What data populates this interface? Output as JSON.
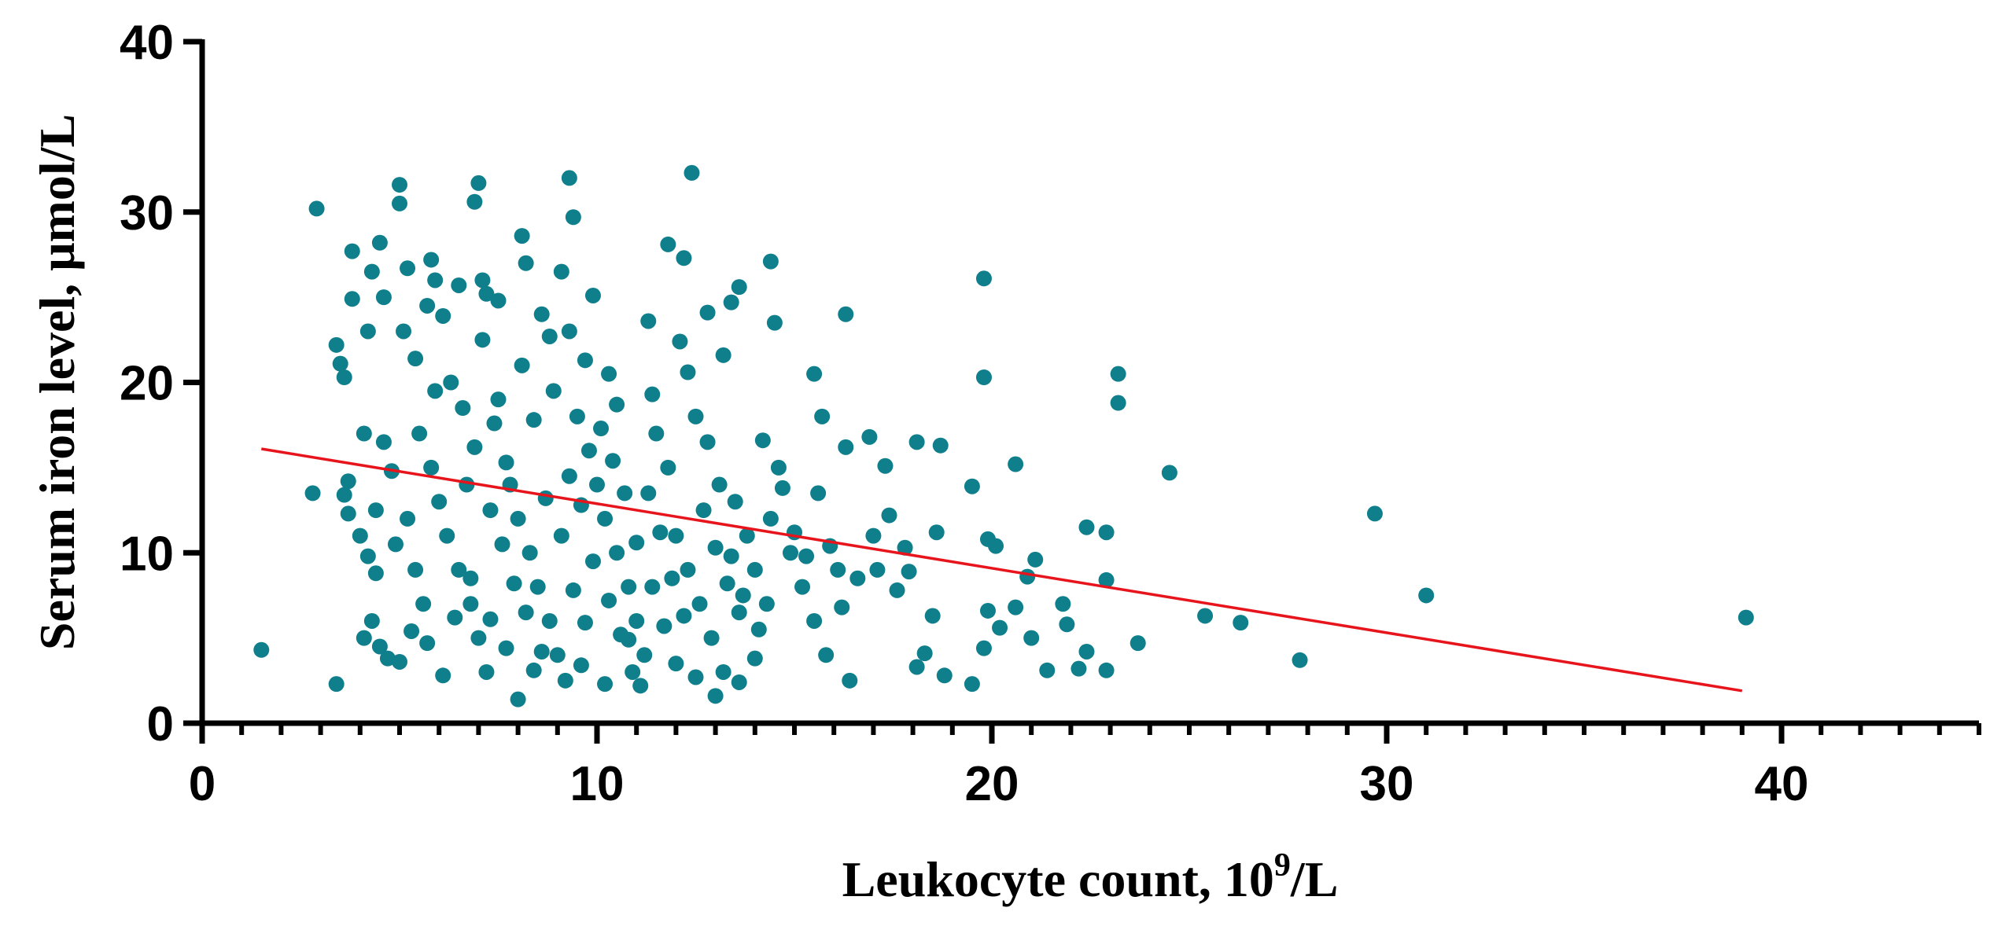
{
  "chart_data": {
    "type": "scatter",
    "xlabel": [
      "Leukocyte count, 10",
      "9",
      "/L"
    ],
    "ylabel": "Serum iron level, μmol/L",
    "color": "#0f7f8c",
    "x": [
      1.5,
      2.9,
      2.8,
      3.4,
      3.5,
      3.6,
      3.4,
      3.7,
      3.6,
      3.7,
      3.8,
      3.8,
      4.1,
      4,
      4.1,
      4.3,
      4.2,
      4.5,
      4.6,
      4.3,
      4.5,
      4.7,
      5,
      5,
      5.2,
      5.1,
      5.3,
      5,
      5.8,
      5.9,
      5.7,
      6.9,
      7,
      7.1,
      7.2,
      8.1,
      8.2,
      9.1,
      9.3,
      9.4,
      9.3,
      9.9,
      10.3,
      11.3,
      11.8,
      12.2,
      12.4,
      12.8,
      13.4,
      13.6,
      14.4,
      14.5,
      16.3,
      15.5,
      15.7,
      16.3,
      16.9,
      17.3,
      17,
      17.4,
      17.8,
      18.1,
      18.7,
      18.5,
      18.6,
      18.8,
      19.5,
      19.5,
      19.8,
      19.8,
      19.9,
      20.1,
      19.9,
      19.8,
      20.2,
      20.6,
      20.6,
      20.9,
      21.1,
      21,
      21.4,
      21.9,
      21.8,
      22.4,
      22.4,
      22.2,
      22.9,
      22.9,
      22.9,
      23.2,
      23.2,
      23.7,
      24.5,
      25.4,
      26.3,
      27.8,
      29.7,
      31,
      39.1,
      16.4,
      5.5,
      5.8,
      6,
      6.2,
      6.5,
      6.8,
      7,
      7.2,
      7.5,
      7.8,
      8,
      8.3,
      8.5,
      8.8,
      9,
      9.2,
      9.5,
      9.8,
      10,
      10.2,
      10.5,
      10.8,
      11,
      11.2,
      11.5,
      11.8,
      12,
      12.3,
      12.6,
      12.9,
      13.2,
      13.5,
      13.8,
      14,
      14.3,
      14.6,
      14.9,
      15.2,
      15.5,
      15.8,
      16.1,
      6.3,
      6.6,
      6.9,
      7.3,
      7.6,
      7.9,
      8.2,
      8.6,
      8.9,
      9.3,
      9.6,
      9.9,
      10.3,
      10.6,
      10.9,
      11.3,
      11.6,
      11.9,
      12.2,
      12.5,
      12.8,
      13.1,
      13.4,
      13.7,
      14.1,
      14.4,
      5.2,
      5.4,
      5.6,
      5.9,
      4.8,
      4.6,
      4.4,
      4.2,
      4.4,
      4.9,
      5.7,
      6.1,
      6.4,
      6.7,
      7.1,
      7.4,
      7.7,
      8.1,
      8.4,
      8.7,
      9.1,
      9.4,
      9.7,
      10.1,
      10.4,
      10.7,
      11,
      11.4,
      11.7,
      12,
      12.3,
      12.7,
      13,
      13.3,
      13.6,
      14,
      14.2,
      14.7,
      15,
      15.3,
      15.6,
      15.9,
      16.2,
      16.6,
      17.1,
      17.6,
      17.9,
      18.3,
      18.1,
      6.8,
      7.3,
      7.7,
      8,
      8.4,
      9.6,
      10.2,
      10.8,
      11.1,
      12.5,
      13,
      13.6,
      7.5,
      8.6,
      9.7,
      10.5,
      11.4,
      12.1,
      13.2,
      8.8,
      6.1,
      5.4,
      6.5
    ],
    "values": [
      4.3,
      30.2,
      13.5,
      22.2,
      21.1,
      20.3,
      2.3,
      14.2,
      13.4,
      12.3,
      27.7,
      24.9,
      17,
      11,
      5,
      26.5,
      23,
      28.2,
      25,
      6,
      4.5,
      3.8,
      31.6,
      30.5,
      26.7,
      23,
      5.4,
      3.6,
      27.2,
      26,
      24.5,
      30.6,
      31.7,
      26,
      25.2,
      28.6,
      27,
      26.5,
      32,
      29.7,
      23,
      25.1,
      20.5,
      23.6,
      28.1,
      27.3,
      32.3,
      24.1,
      24.7,
      25.6,
      27.1,
      23.5,
      24,
      20.5,
      18,
      16.2,
      16.8,
      15.1,
      11,
      12.2,
      10.3,
      16.5,
      16.3,
      6.3,
      11.2,
      2.8,
      2.3,
      13.9,
      26.1,
      20.3,
      10.8,
      10.4,
      6.6,
      4.4,
      5.6,
      15.2,
      6.8,
      8.6,
      9.6,
      5,
      3.1,
      5.8,
      7,
      11.5,
      4.2,
      3.2,
      11.2,
      8.4,
      3.1,
      20.5,
      18.8,
      4.7,
      14.7,
      6.3,
      5.9,
      3.7,
      12.3,
      7.5,
      6.2,
      2.5,
      17,
      15,
      13,
      11,
      9,
      7,
      5,
      3,
      19,
      14,
      12,
      10,
      8,
      6,
      4,
      2.5,
      18,
      16,
      14,
      12,
      10,
      8,
      6,
      4,
      17,
      15,
      11,
      9,
      7,
      5,
      3,
      13,
      11,
      9,
      7,
      15,
      10,
      8,
      6,
      4,
      9,
      20,
      18.5,
      16.2,
      12.5,
      10.5,
      8.2,
      6.5,
      4.2,
      19.5,
      14.5,
      12.8,
      9.5,
      7.2,
      5.2,
      3,
      13.5,
      11.2,
      8.5,
      6.3,
      18,
      16.5,
      14,
      9.8,
      7.5,
      5.5,
      12,
      12,
      9,
      7,
      19.5,
      14.8,
      16.5,
      12.5,
      9.8,
      8.8,
      10.5,
      4.7,
      2.8,
      6.2,
      14,
      22.5,
      17.6,
      15.3,
      21,
      17.8,
      13.2,
      11,
      7.8,
      5.9,
      17.3,
      15.4,
      13.5,
      10.6,
      8,
      5.7,
      3.5,
      20.6,
      12.5,
      10.3,
      8.2,
      6.5,
      3.8,
      16.6,
      13.8,
      11.2,
      9.8,
      13.5,
      10.4,
      6.8,
      8.5,
      9,
      7.8,
      8.9,
      4.1,
      3.3,
      8.5,
      6.1,
      4.4,
      1.4,
      3.1,
      3.4,
      2.3,
      4.9,
      2.2,
      2.7,
      1.6,
      2.4,
      24.8,
      24,
      21.3,
      18.7,
      19.3,
      22.4,
      21.6,
      22.7,
      23.9,
      21.4,
      25.7
    ],
    "trend_line": {
      "x": [
        1.5,
        39
      ],
      "values": [
        16.1,
        1.9
      ],
      "color": "#e8141c"
    },
    "xlim": [
      0,
      45
    ],
    "xticks": [
      0,
      10,
      20,
      30,
      40
    ],
    "xminorticks": [
      1,
      2,
      3,
      4,
      5,
      6,
      7,
      8,
      9,
      11,
      12,
      13,
      14,
      15,
      16,
      17,
      18,
      19,
      21,
      22,
      23,
      24,
      25,
      26,
      27,
      28,
      29,
      31,
      32,
      33,
      34,
      35,
      36,
      37,
      38,
      39,
      41,
      42,
      43,
      44,
      45
    ],
    "ylim": [
      0,
      40
    ],
    "yticks": [
      0,
      10,
      20,
      30,
      40
    ]
  }
}
